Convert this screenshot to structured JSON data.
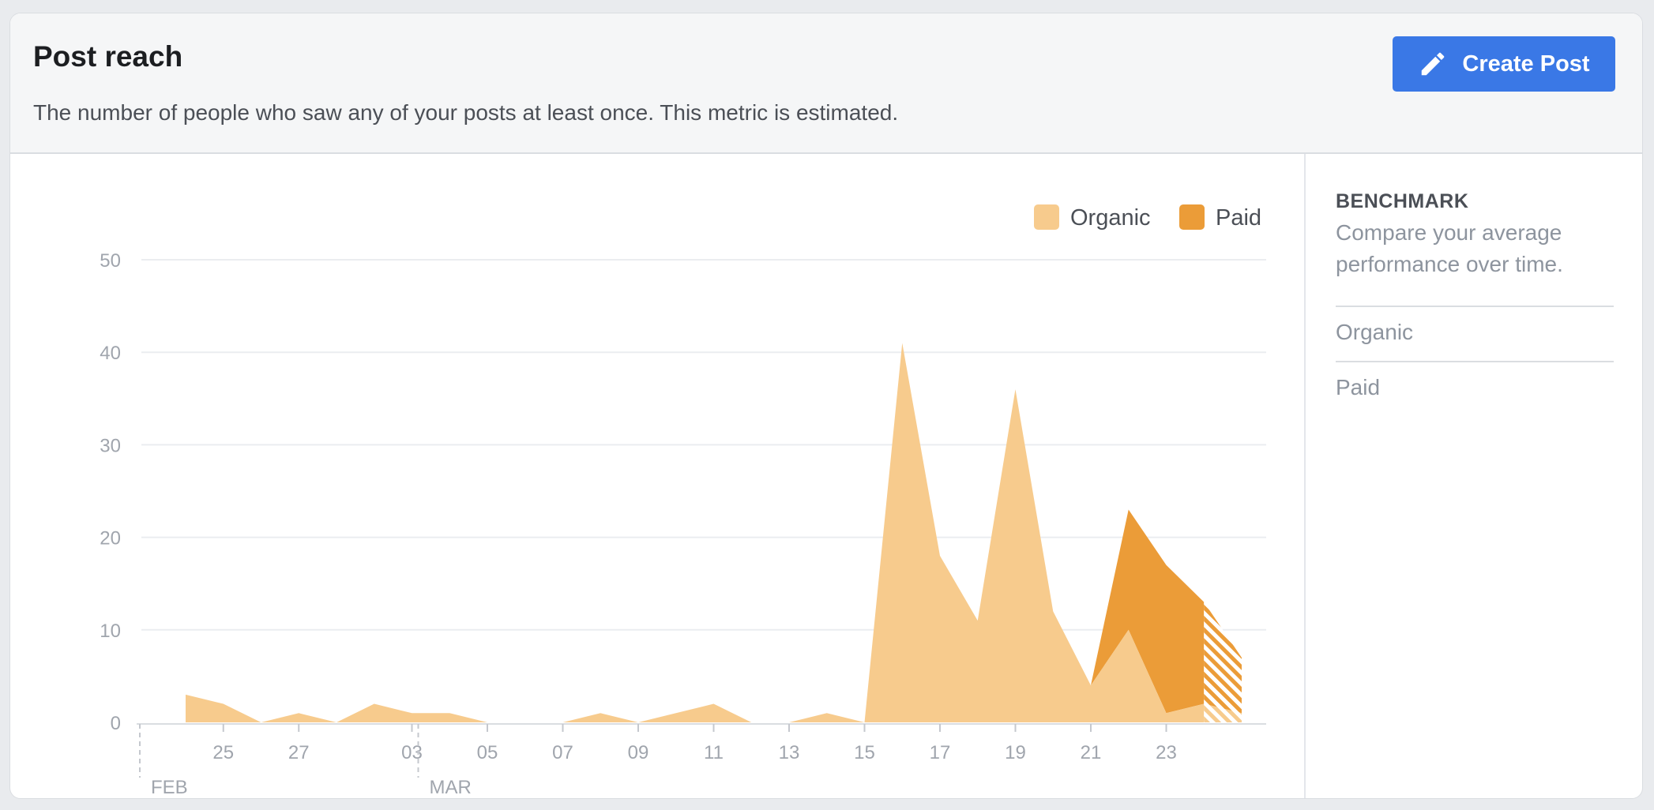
{
  "header": {
    "title": "Post reach",
    "subtitle": "The number of people who saw any of your posts at least once. This metric is estimated.",
    "create_post_label": "Create Post",
    "create_post_icon": "pencil-icon"
  },
  "benchmark": {
    "title": "BENCHMARK",
    "description": "Compare your average performance over time.",
    "items": [
      "Organic",
      "Paid"
    ]
  },
  "colors": {
    "organic": "#f7cb8d",
    "paid": "#eb9c38",
    "button": "#3a78e6"
  },
  "chart_data": {
    "type": "area",
    "title": "",
    "xlabel": "",
    "ylabel": "",
    "ylim": [
      0,
      50
    ],
    "yticks": [
      0,
      10,
      20,
      30,
      40,
      50
    ],
    "grid": true,
    "legend": "top-right",
    "stacked": true,
    "x": [
      "Feb 24",
      "Feb 25",
      "Feb 26",
      "Feb 27",
      "Feb 28",
      "Mar 01",
      "Mar 02",
      "Mar 03",
      "Mar 04",
      "Mar 05",
      "Mar 06",
      "Mar 07",
      "Mar 08",
      "Mar 09",
      "Mar 10",
      "Mar 11",
      "Mar 12",
      "Mar 13",
      "Mar 14",
      "Mar 15",
      "Mar 16",
      "Mar 17",
      "Mar 18",
      "Mar 19",
      "Mar 20",
      "Mar 21",
      "Mar 22",
      "Mar 23",
      "Mar 24"
    ],
    "x_tick_labels": [
      "25",
      "27",
      "03",
      "05",
      "07",
      "09",
      "11",
      "13",
      "15",
      "17",
      "19",
      "21",
      "23"
    ],
    "month_labels": [
      {
        "label": "FEB",
        "at": "Feb 24"
      },
      {
        "label": "MAR",
        "at": "Mar 02"
      }
    ],
    "series": [
      {
        "name": "Organic",
        "values": [
          3,
          2,
          0,
          1,
          0,
          2,
          1,
          1,
          0,
          0,
          0,
          1,
          0,
          1,
          2,
          0,
          0,
          1,
          0,
          41,
          18,
          11,
          36,
          12,
          4,
          10,
          1,
          2,
          1
        ]
      },
      {
        "name": "Paid",
        "values": [
          0,
          0,
          0,
          0,
          0,
          0,
          0,
          0,
          0,
          0,
          0,
          0,
          0,
          0,
          0,
          0,
          0,
          0,
          0,
          0,
          0,
          0,
          0,
          0,
          0,
          13,
          16,
          11,
          6
        ]
      }
    ]
  }
}
